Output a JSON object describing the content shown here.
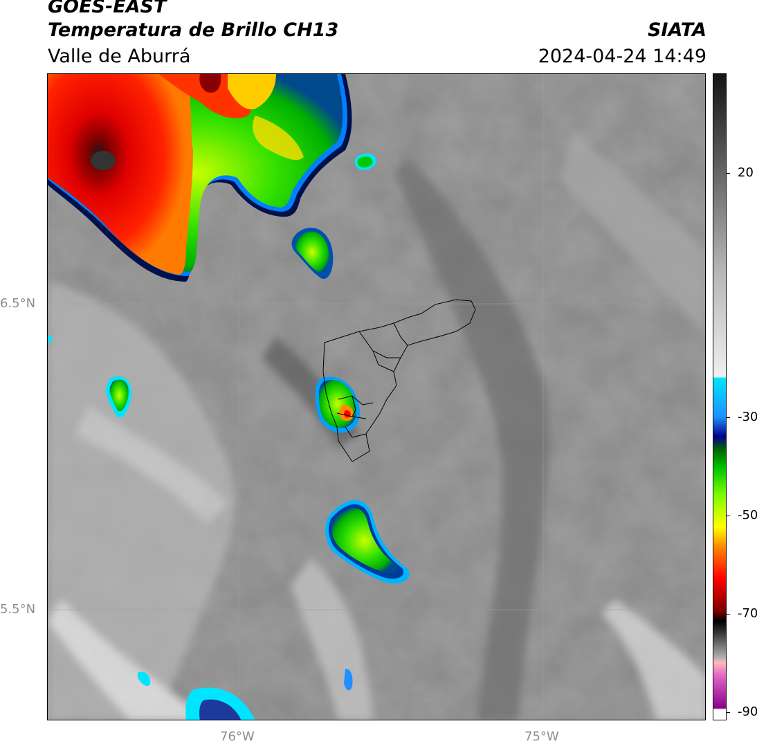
{
  "header": {
    "satellite": "GOES-EAST",
    "product": "Temperatura de Brillo CH13",
    "region": "Valle de Aburrá",
    "agency": "SIATA",
    "datetime": "2024-04-24 14:49"
  },
  "axes": {
    "lat_ticks": [
      "6.5°N",
      "5.5°N"
    ],
    "lon_ticks": [
      "76°W",
      "75°W"
    ]
  },
  "colorbar": {
    "ticks": [
      "20",
      "-30",
      "-50",
      "-70",
      "-90"
    ],
    "colors": [
      "#ffffff",
      "#8b008b",
      "#e066c8",
      "#ffb6c1",
      "#2b2b2b",
      "#000000",
      "#7a0000",
      "#ff0000",
      "#ff8c00",
      "#ffff00",
      "#7cfc00",
      "#00c800",
      "#006400",
      "#00008b",
      "#1e90ff",
      "#00e5ff",
      "#f0f0f0",
      "#b4b4b4",
      "#646464",
      "#141414"
    ]
  }
}
